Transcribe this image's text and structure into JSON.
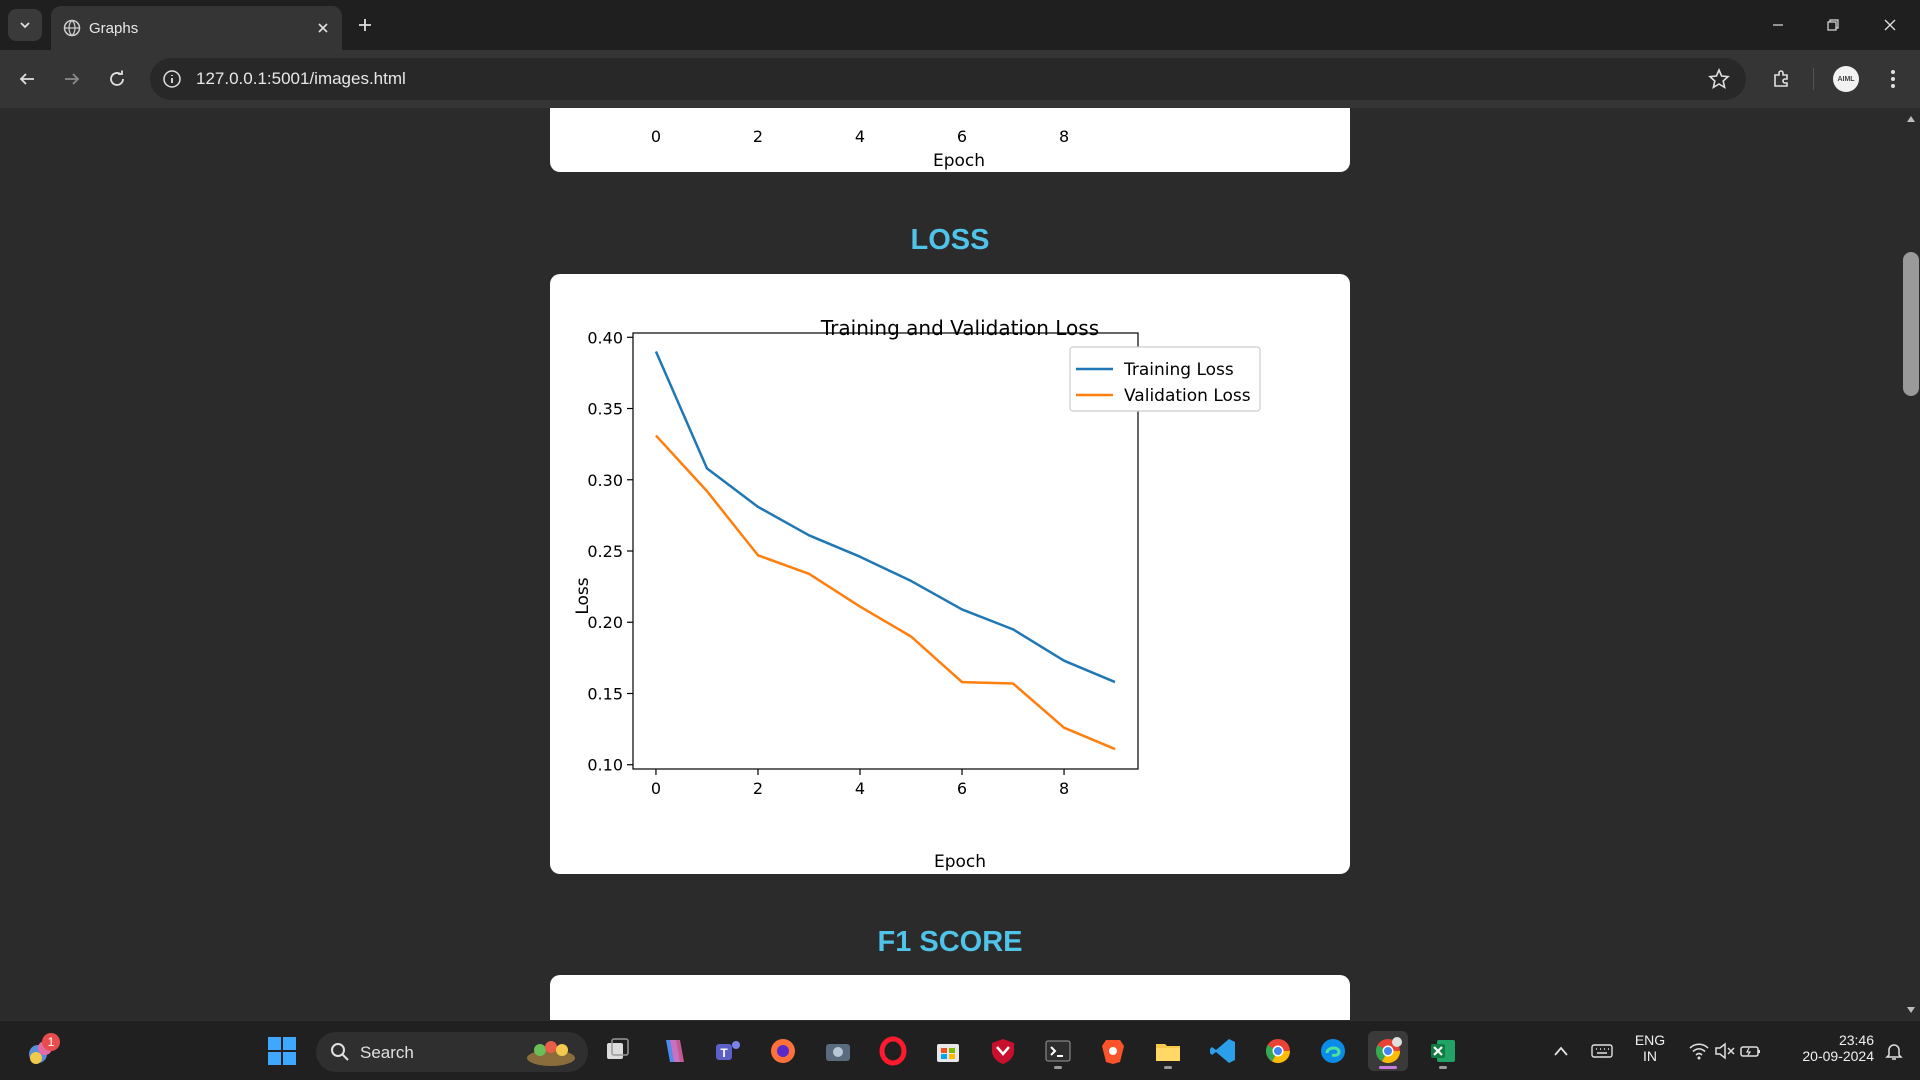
{
  "browser": {
    "tab_title": "Graphs",
    "url": "127.0.0.1:5001/images.html",
    "profile_initials": "AIML"
  },
  "page": {
    "prev_chart": {
      "x_ticks": [
        "0",
        "2",
        "4",
        "6",
        "8"
      ],
      "xlabel": "Epoch"
    },
    "loss_section_title": "LOSS",
    "f1_section_title": "F1 SCORE"
  },
  "chart_data": {
    "type": "line",
    "title": "Training and Validation Loss",
    "xlabel": "Epoch",
    "ylabel": "Loss",
    "x": [
      0,
      1,
      2,
      3,
      4,
      5,
      6,
      7,
      8,
      9
    ],
    "xlim": [
      -0.45,
      9.45
    ],
    "ylim": [
      0.097,
      0.403
    ],
    "x_ticks": [
      0,
      2,
      4,
      6,
      8
    ],
    "y_ticks": [
      0.1,
      0.15,
      0.2,
      0.25,
      0.3,
      0.35,
      0.4
    ],
    "y_tick_labels": [
      "0.10",
      "0.15",
      "0.20",
      "0.25",
      "0.30",
      "0.35",
      "0.40"
    ],
    "grid": false,
    "legend_position": "top-right",
    "series": [
      {
        "name": "Training Loss",
        "color": "#1f77b4",
        "values": [
          0.39,
          0.308,
          0.281,
          0.261,
          0.246,
          0.229,
          0.209,
          0.195,
          0.173,
          0.158
        ]
      },
      {
        "name": "Validation Loss",
        "color": "#ff7f0e",
        "values": [
          0.331,
          0.292,
          0.247,
          0.234,
          0.211,
          0.19,
          0.158,
          0.157,
          0.126,
          0.111
        ]
      }
    ]
  },
  "taskbar": {
    "search_label": "Search",
    "notification_count": "1",
    "lang_line1": "ENG",
    "lang_line2": "IN",
    "time": "23:46",
    "date": "20-09-2024"
  }
}
